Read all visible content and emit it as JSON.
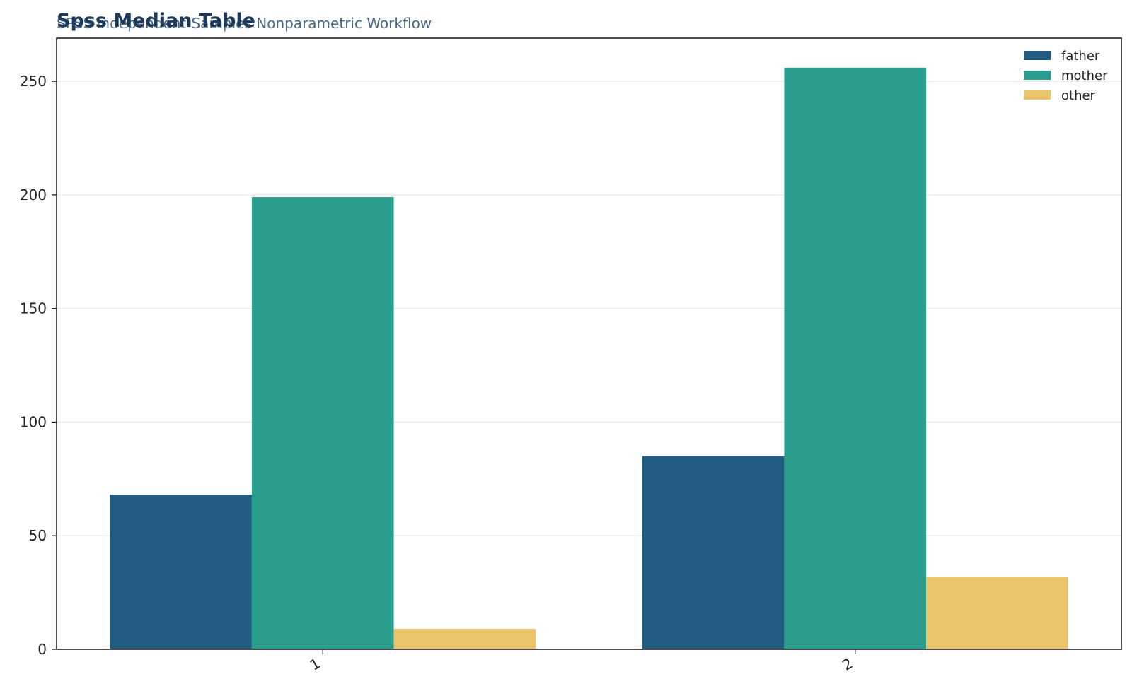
{
  "chart_data": {
    "type": "bar",
    "title": "Spss Median Table",
    "subtitle": "SPSS Independent-Samples Nonparametric Workflow",
    "xlabel": "",
    "ylabel": "",
    "categories": [
      "1",
      "2"
    ],
    "series": [
      {
        "name": "father",
        "color": "#215b82",
        "values": [
          68,
          85
        ]
      },
      {
        "name": "mother",
        "color": "#2a9d8c",
        "values": [
          199,
          256
        ]
      },
      {
        "name": "other",
        "color": "#e9c46a",
        "values": [
          9,
          32
        ]
      }
    ],
    "ylim": [
      0,
      269
    ],
    "yticks": [
      0,
      50,
      100,
      150,
      200,
      250
    ],
    "grid": true,
    "legend_position": "top-right"
  }
}
